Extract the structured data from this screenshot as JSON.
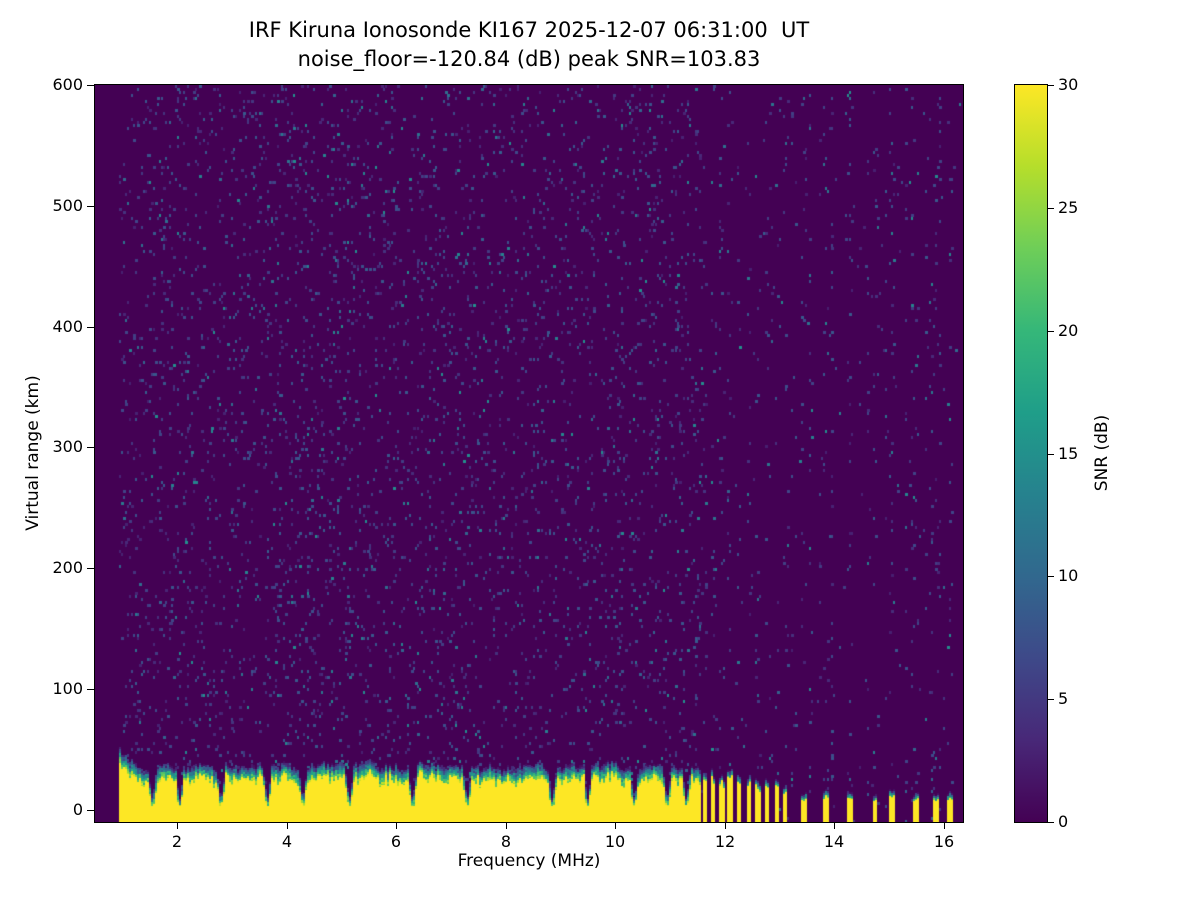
{
  "chart_data": {
    "type": "heatmap",
    "title_line1": "IRF Kiruna Ionosonde KI167 2025-12-07 06:31:00  UT",
    "title_line2": "noise_floor=-120.84 (dB) peak SNR=103.83",
    "station": "IRF Kiruna Ionosonde KI167",
    "timestamp_ut": "2025-12-07 06:31:00 UT",
    "noise_floor_db": -120.84,
    "peak_snr_db": 103.83,
    "xlabel": "Frequency (MHz)",
    "ylabel": "Virtual range (km)",
    "colorbar_label": "SNR (dB)",
    "xlim": [
      0.5,
      16.35
    ],
    "ylim": [
      -10,
      600
    ],
    "xticks": [
      2,
      4,
      6,
      8,
      10,
      12,
      14,
      16
    ],
    "yticks": [
      0,
      100,
      200,
      300,
      400,
      500,
      600
    ],
    "colorbar": {
      "min": 0,
      "max": 30,
      "ticks": [
        0,
        5,
        10,
        15,
        20,
        25,
        30
      ]
    },
    "colormap": "viridis",
    "colormap_stops": [
      "#440154",
      "#482878",
      "#3e4989",
      "#31688e",
      "#26828e",
      "#1f9e89",
      "#35b779",
      "#6ece58",
      "#b5de2b",
      "#fde725"
    ],
    "background_snr_color": "#440154",
    "data_freq_range_mhz": [
      0.95,
      16.35
    ],
    "noise_speckle": {
      "seed": 1337,
      "density_left": 0.055,
      "density_right_stripe": 0.05,
      "density_right_base": 0.006,
      "stripe_prob": 0.2
    },
    "echo_band": {
      "description": "strong ground/ionospheric echo band near 0-45 km virtual range, saturated (SNR ~30 dB), continuous from 1.0 to ~11.6 MHz, intermittent comb of narrow bars above 11.6 MHz",
      "base_top_km": 36,
      "jitter_km": 9,
      "transition_km": 12,
      "left_boost_until_mhz": 1.3,
      "left_boost_km": 16,
      "comb_start_mhz": 11.58,
      "notches_mhz": [
        1.55,
        2.05,
        2.8,
        3.65,
        4.3,
        5.15,
        6.3,
        7.3,
        8.85,
        9.5,
        10.35,
        10.95,
        11.3
      ],
      "comb_bars": [
        {
          "f": 11.63,
          "h": 28
        },
        {
          "f": 11.79,
          "h": 30
        },
        {
          "f": 11.95,
          "h": 26
        },
        {
          "f": 12.1,
          "h": 30
        },
        {
          "f": 12.26,
          "h": 25
        },
        {
          "f": 12.44,
          "h": 28
        },
        {
          "f": 12.6,
          "h": 24
        },
        {
          "f": 12.78,
          "h": 27
        },
        {
          "f": 12.96,
          "h": 24
        },
        {
          "f": 13.1,
          "h": 20
        },
        {
          "f": 13.45,
          "h": 13
        },
        {
          "f": 13.85,
          "h": 16
        },
        {
          "f": 14.28,
          "h": 14
        },
        {
          "f": 14.75,
          "h": 13
        },
        {
          "f": 15.06,
          "h": 15
        },
        {
          "f": 15.5,
          "h": 13
        },
        {
          "f": 15.86,
          "h": 12
        },
        {
          "f": 16.12,
          "h": 15
        }
      ]
    }
  }
}
